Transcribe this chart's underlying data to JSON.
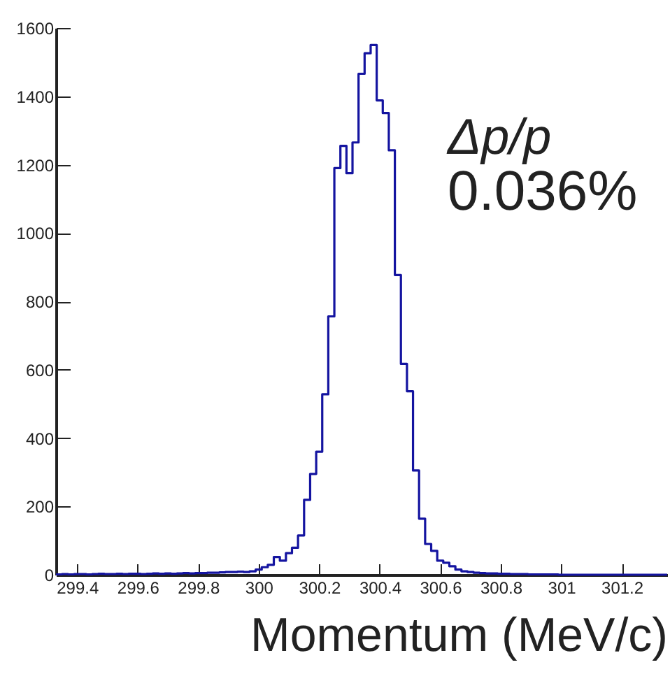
{
  "chart_data": {
    "type": "histogram",
    "xlabel": "Momentum (MeV/c)",
    "annotations": [
      "Δp/p",
      "0.036%"
    ],
    "color": "#1414a0",
    "bins": [
      299.33,
      299.35,
      299.37,
      299.39,
      299.41,
      299.43,
      299.45,
      299.47,
      299.49,
      299.51,
      299.53,
      299.55,
      299.57,
      299.59,
      299.61,
      299.63,
      299.65,
      299.67,
      299.69,
      299.71,
      299.73,
      299.75,
      299.77,
      299.79,
      299.81,
      299.83,
      299.85,
      299.87,
      299.89,
      299.91,
      299.93,
      299.95,
      299.97,
      299.99,
      300.01,
      300.03,
      300.05,
      300.07,
      300.09,
      300.11,
      300.13,
      300.15,
      300.17,
      300.19,
      300.21,
      300.23,
      300.25,
      300.27,
      300.29,
      300.31,
      300.33,
      300.35,
      300.37,
      300.39,
      300.41,
      300.43,
      300.45,
      300.47,
      300.49,
      300.51,
      300.53,
      300.55,
      300.57,
      300.59,
      300.61,
      300.63,
      300.65,
      300.67,
      300.69,
      300.71,
      300.73,
      300.75,
      300.77,
      300.79,
      300.81,
      300.83,
      300.85,
      300.87,
      300.89,
      300.91,
      300.93,
      300.95,
      300.97,
      300.99,
      301.01,
      301.03,
      301.05,
      301.07,
      301.09,
      301.11,
      301.13,
      301.15,
      301.17,
      301.19,
      301.21,
      301.23,
      301.25,
      301.27,
      301.29,
      301.31,
      301.33,
      301.35
    ],
    "values": [
      1,
      2,
      1,
      2,
      2,
      1,
      2,
      3,
      2,
      2,
      3,
      2,
      3,
      3,
      2,
      3,
      4,
      3,
      4,
      3,
      4,
      5,
      4,
      5,
      5,
      6,
      6,
      7,
      8,
      8,
      9,
      8,
      10,
      15,
      22,
      29,
      52,
      41,
      63,
      79,
      115,
      219,
      295,
      360,
      528,
      756,
      1190,
      1255,
      1175,
      1265,
      1466,
      1526,
      1550,
      1388,
      1351,
      1242,
      877,
      617,
      537,
      305,
      164,
      90,
      70,
      41,
      35,
      25,
      15,
      10,
      8,
      6,
      5,
      4,
      4,
      3,
      3,
      2,
      2,
      2,
      1,
      1,
      1,
      1,
      1,
      0,
      0,
      0,
      0,
      0,
      0,
      0,
      0,
      0,
      0,
      0,
      0,
      0,
      0,
      0,
      0,
      0,
      0
    ],
    "xlim": [
      299.33,
      301.35
    ],
    "xticks": [
      299.4,
      299.6,
      299.8,
      300,
      300.2,
      300.4,
      300.6,
      300.8,
      301,
      301.2
    ],
    "ylim": [
      0,
      1600
    ],
    "yticks": [
      0,
      200,
      400,
      600,
      800,
      1000,
      1200,
      1400,
      1600
    ],
    "grid": false
  }
}
